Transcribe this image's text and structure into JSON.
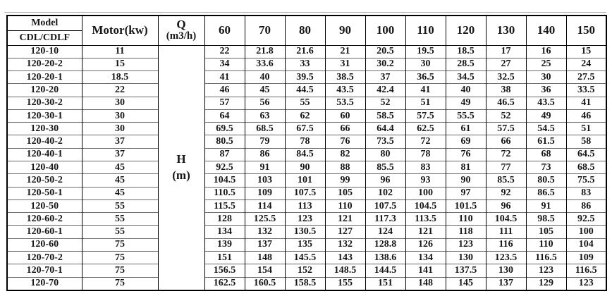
{
  "table": {
    "header": {
      "model_line1": "Model",
      "model_line2": "CDL/CDLF",
      "motor": "Motor(kw)",
      "q_line1": "Q",
      "q_line2": "(m3/h)",
      "flow_columns": [
        "60",
        "70",
        "80",
        "90",
        "100",
        "110",
        "120",
        "130",
        "140",
        "150"
      ]
    },
    "h_label_line1": "H",
    "h_label_line2": "(m)",
    "rows": [
      {
        "model": "120-10",
        "motor": "11",
        "values": [
          "22",
          "21.8",
          "21.6",
          "21",
          "20.5",
          "19.5",
          "18.5",
          "17",
          "16",
          "15"
        ]
      },
      {
        "model": "120-20-2",
        "motor": "15",
        "values": [
          "34",
          "33.6",
          "33",
          "31",
          "30.2",
          "30",
          "28.5",
          "27",
          "25",
          "24"
        ]
      },
      {
        "model": "120-20-1",
        "motor": "18.5",
        "values": [
          "41",
          "40",
          "39.5",
          "38.5",
          "37",
          "36.5",
          "34.5",
          "32.5",
          "30",
          "27.5"
        ]
      },
      {
        "model": "120-20",
        "motor": "22",
        "values": [
          "46",
          "45",
          "44.5",
          "43.5",
          "42.4",
          "41",
          "40",
          "38",
          "36",
          "33.5"
        ]
      },
      {
        "model": "120-30-2",
        "motor": "30",
        "values": [
          "57",
          "56",
          "55",
          "53.5",
          "52",
          "51",
          "49",
          "46.5",
          "43.5",
          "41"
        ]
      },
      {
        "model": "120-30-1",
        "motor": "30",
        "values": [
          "64",
          "63",
          "62",
          "60",
          "58.5",
          "57.5",
          "55.5",
          "52",
          "49",
          "46"
        ]
      },
      {
        "model": "120-30",
        "motor": "30",
        "values": [
          "69.5",
          "68.5",
          "67.5",
          "66",
          "64.4",
          "62.5",
          "61",
          "57.5",
          "54.5",
          "51"
        ]
      },
      {
        "model": "120-40-2",
        "motor": "37",
        "values": [
          "80.5",
          "79",
          "78",
          "76",
          "73.5",
          "72",
          "69",
          "66",
          "61.5",
          "58"
        ]
      },
      {
        "model": "120-40-1",
        "motor": "37",
        "values": [
          "87",
          "86",
          "84.5",
          "82",
          "80",
          "78",
          "76",
          "72",
          "68",
          "64.5"
        ]
      },
      {
        "model": "120-40",
        "motor": "45",
        "values": [
          "92.5",
          "91",
          "90",
          "88",
          "85.5",
          "83",
          "81",
          "77",
          "73",
          "68.5"
        ]
      },
      {
        "model": "120-50-2",
        "motor": "45",
        "values": [
          "104.5",
          "103",
          "101",
          "99",
          "96",
          "93",
          "90",
          "85.5",
          "80.5",
          "75.5"
        ]
      },
      {
        "model": "120-50-1",
        "motor": "45",
        "values": [
          "110.5",
          "109",
          "107.5",
          "105",
          "102",
          "100",
          "97",
          "92",
          "86.5",
          "83"
        ]
      },
      {
        "model": "120-50",
        "motor": "55",
        "values": [
          "115.5",
          "114",
          "113",
          "110",
          "107.5",
          "104.5",
          "101.5",
          "96",
          "91",
          "86"
        ]
      },
      {
        "model": "120-60-2",
        "motor": "55",
        "values": [
          "128",
          "125.5",
          "123",
          "121",
          "117.3",
          "113.5",
          "110",
          "104.5",
          "98.5",
          "92.5"
        ]
      },
      {
        "model": "120-60-1",
        "motor": "55",
        "values": [
          "134",
          "132",
          "130.5",
          "127",
          "124",
          "121",
          "118",
          "111",
          "105",
          "100"
        ]
      },
      {
        "model": "120-60",
        "motor": "75",
        "values": [
          "139",
          "137",
          "135",
          "132",
          "128.8",
          "126",
          "123",
          "116",
          "110",
          "104"
        ]
      },
      {
        "model": "120-70-2",
        "motor": "75",
        "values": [
          "151",
          "148",
          "145.5",
          "143",
          "138.6",
          "134",
          "130",
          "123.5",
          "116.5",
          "109"
        ]
      },
      {
        "model": "120-70-1",
        "motor": "75",
        "values": [
          "156.5",
          "154",
          "152",
          "148.5",
          "144.5",
          "141",
          "137.5",
          "130",
          "123",
          "116.5"
        ]
      },
      {
        "model": "120-70",
        "motor": "75",
        "values": [
          "162.5",
          "160.5",
          "158.5",
          "155",
          "151",
          "148",
          "145",
          "137",
          "129",
          "123"
        ]
      }
    ],
    "colors": {
      "outer_border": "#000000",
      "row_grid": "#6a6a6a",
      "text": "#161616",
      "background": "#ffffff"
    }
  }
}
